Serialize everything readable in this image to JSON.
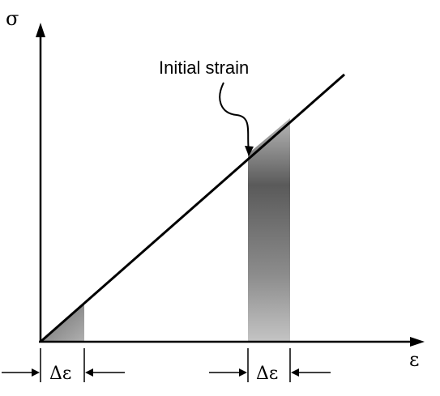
{
  "axes": {
    "y_label": "σ",
    "x_label": "ε"
  },
  "annotation": {
    "text": "Initial strain"
  },
  "increments": {
    "left_label": "Δε",
    "right_label": "Δε"
  },
  "colors": {
    "line": "#000000",
    "shade_dark": "#5a5a5a",
    "shade_mid": "#8c8c8c",
    "shade_light": "#bdbdbd"
  }
}
